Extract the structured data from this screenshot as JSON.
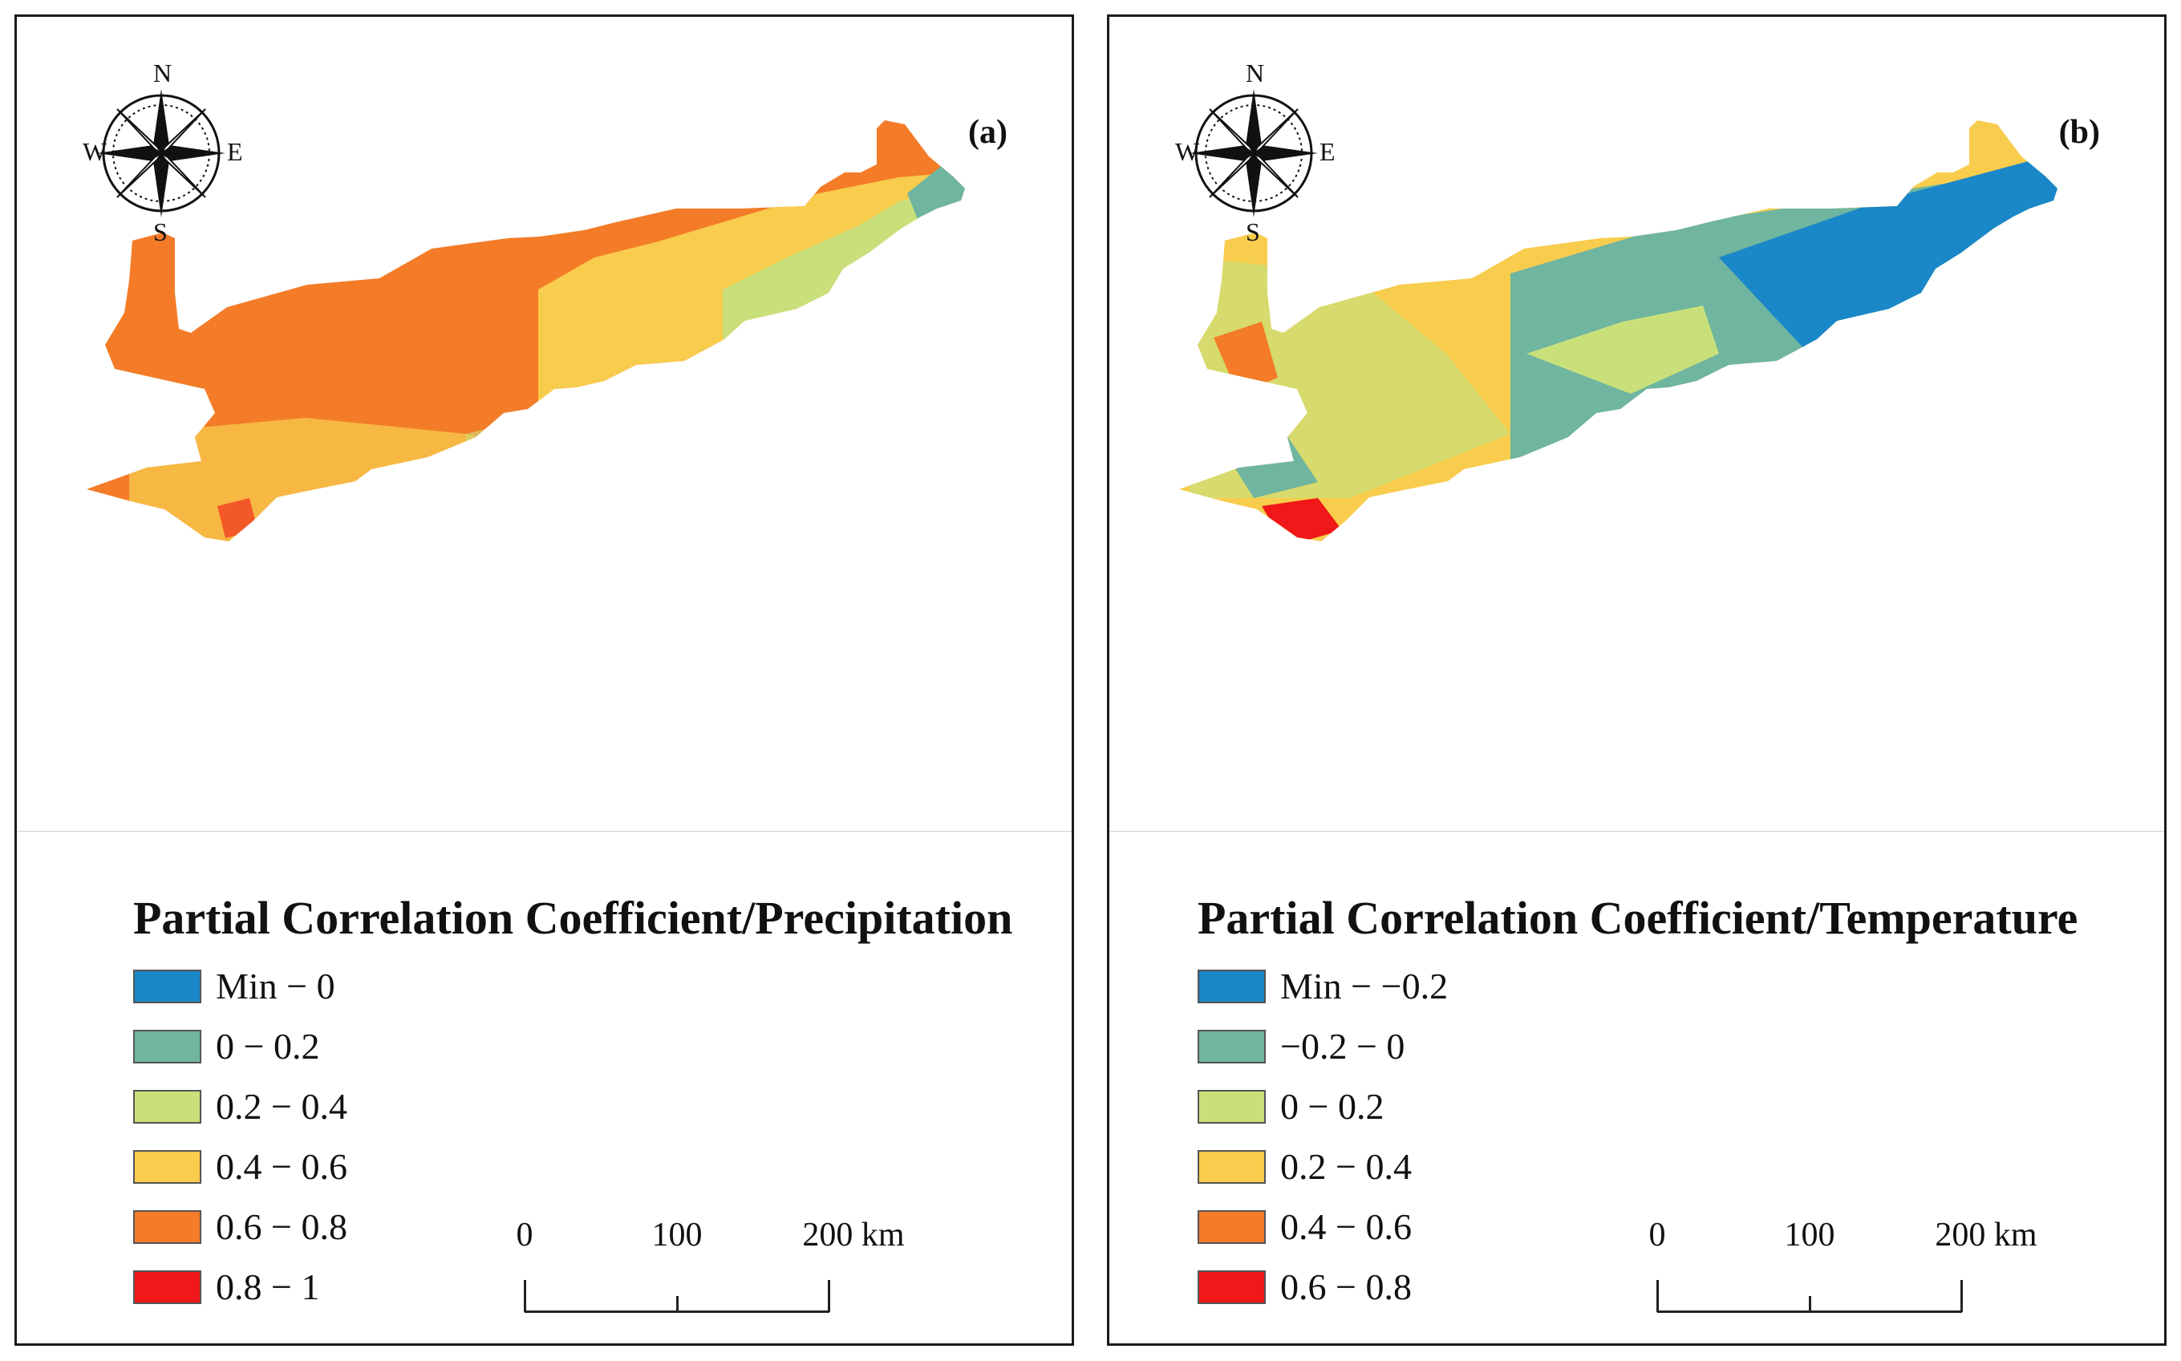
{
  "panels": [
    {
      "label": "(a)",
      "legend_title": "Partial Correlation Coefficient/Precipitation",
      "legend": [
        {
          "label": "Min − 0",
          "color": "#1a87c8"
        },
        {
          "label": "0 − 0.2",
          "color": "#6fb5a0"
        },
        {
          "label": "0.2 − 0.4",
          "color": "#c9e07a"
        },
        {
          "label": "0.4 − 0.6",
          "color": "#f8cc4c"
        },
        {
          "label": "0.6 − 0.8",
          "color": "#f47c28"
        },
        {
          "label": "0.8 − 1",
          "color": "#f01818"
        }
      ]
    },
    {
      "label": "(b)",
      "legend_title": "Partial Correlation Coefficient/Temperature",
      "legend": [
        {
          "label": "Min − −0.2",
          "color": "#1a87c8"
        },
        {
          "label": "−0.2 − 0",
          "color": "#6fb5a0"
        },
        {
          "label": "0 − 0.2",
          "color": "#c9e07a"
        },
        {
          "label": "0.2 − 0.4",
          "color": "#f8cc4c"
        },
        {
          "label": "0.4 − 0.6",
          "color": "#f47c28"
        },
        {
          "label": "0.6 − 0.8",
          "color": "#f01818"
        }
      ]
    }
  ],
  "compass": {
    "n": "N",
    "s": "S",
    "e": "E",
    "w": "W"
  },
  "scale_bar": {
    "labels": [
      "0",
      "100",
      "200 km"
    ]
  }
}
